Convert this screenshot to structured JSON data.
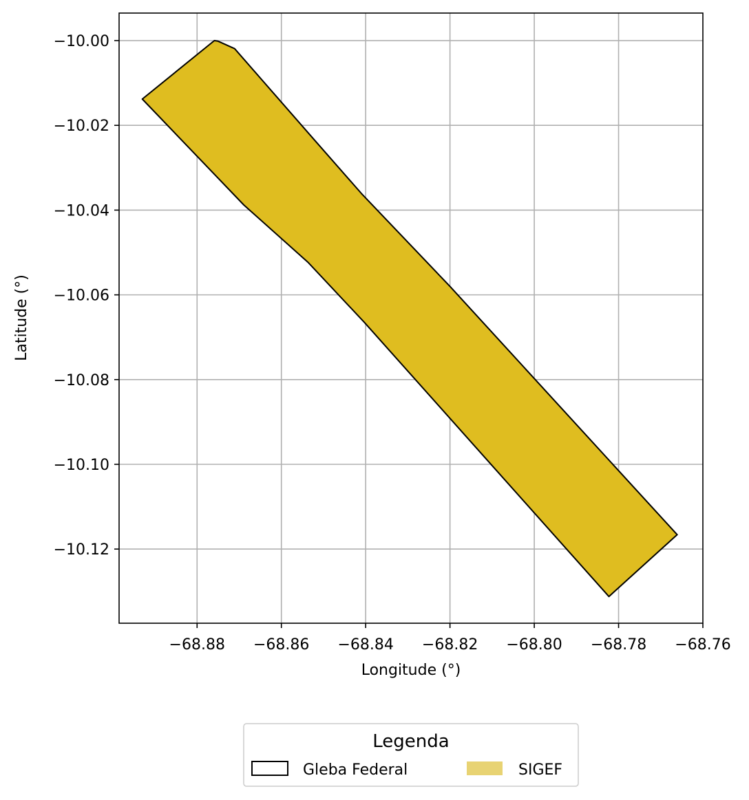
{
  "chart_data": {
    "type": "map",
    "title": "",
    "xlabel": "Longitude (°)",
    "ylabel": "Latitude (°)",
    "xlim": [
      -68.8985,
      -68.76
    ],
    "ylim": [
      -10.1375,
      -9.9935
    ],
    "grid": true,
    "xticks": [
      {
        "value": -68.88,
        "label": "−68.88"
      },
      {
        "value": -68.86,
        "label": "−68.86"
      },
      {
        "value": -68.84,
        "label": "−68.84"
      },
      {
        "value": -68.82,
        "label": "−68.82"
      },
      {
        "value": -68.8,
        "label": "−68.80"
      },
      {
        "value": -68.78,
        "label": "−68.78"
      },
      {
        "value": -68.76,
        "label": "−68.76"
      }
    ],
    "yticks": [
      {
        "value": -10.0,
        "label": "−10.00"
      },
      {
        "value": -10.02,
        "label": "−10.02"
      },
      {
        "value": -10.04,
        "label": "−10.04"
      },
      {
        "value": -10.06,
        "label": "−10.06"
      },
      {
        "value": -10.08,
        "label": "−10.08"
      },
      {
        "value": -10.1,
        "label": "−10.10"
      },
      {
        "value": -10.12,
        "label": "−10.12"
      }
    ],
    "series": [
      {
        "name": "SIGEF",
        "kind": "polygon",
        "fill": "#dfbd20",
        "stroke": "#000000",
        "coordinates": [
          [
            -68.8751,
            -10.0001
          ],
          [
            -68.8711,
            -10.0019
          ],
          [
            -68.8522,
            -10.0234
          ],
          [
            -68.841,
            -10.0361
          ],
          [
            -68.82,
            -10.058
          ],
          [
            -68.7661,
            -10.1166
          ],
          [
            -68.7823,
            -10.1312
          ],
          [
            -68.8403,
            -10.0665
          ],
          [
            -68.8537,
            -10.0523
          ],
          [
            -68.8689,
            -10.0388
          ],
          [
            -68.893,
            -10.0138
          ],
          [
            -68.8759,
            -10.0
          ]
        ]
      }
    ],
    "legend": {
      "title": "Legenda",
      "placement": "bottom-center",
      "entries": [
        {
          "label": "Gleba Federal",
          "style": "outline",
          "stroke": "#000000",
          "fill": "none"
        },
        {
          "label": "SIGEF",
          "style": "filled",
          "fill": "#e8d373",
          "stroke": "none"
        }
      ]
    },
    "colors": {
      "grid": "#b0b0b0",
      "frame": "#000000"
    }
  }
}
